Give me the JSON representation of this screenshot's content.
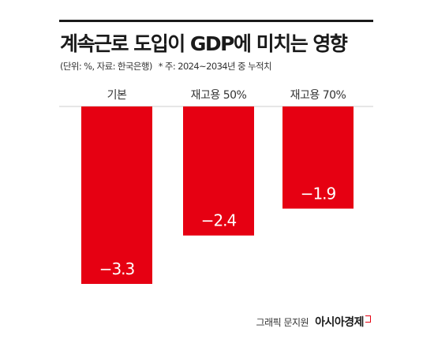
{
  "header": {
    "title": "계속근로 도입이 GDP에 미치는 영향",
    "subtitle": "(단위: %, 자료: 한국은행)",
    "note": "* 주: 2024~2034년 중 누적치"
  },
  "footer": {
    "credit": "그래픽 문지원",
    "brand": "아시아경제"
  },
  "colors": {
    "bar": "#e60012",
    "axis": "#cccccc",
    "value_text": "#ffffff"
  },
  "chart_data": {
    "type": "bar",
    "categories": [
      "기본",
      "재고용 50%",
      "재고용 70%"
    ],
    "values": [
      -3.3,
      -2.4,
      -1.9
    ],
    "value_labels": [
      "−3.3",
      "−2.4",
      "−1.9"
    ],
    "title": "계속근로 도입이 GDP에 미치는 영향",
    "xlabel": "",
    "ylabel": "",
    "ylim": [
      -3.3,
      0
    ],
    "grid": false,
    "legend": "none"
  }
}
